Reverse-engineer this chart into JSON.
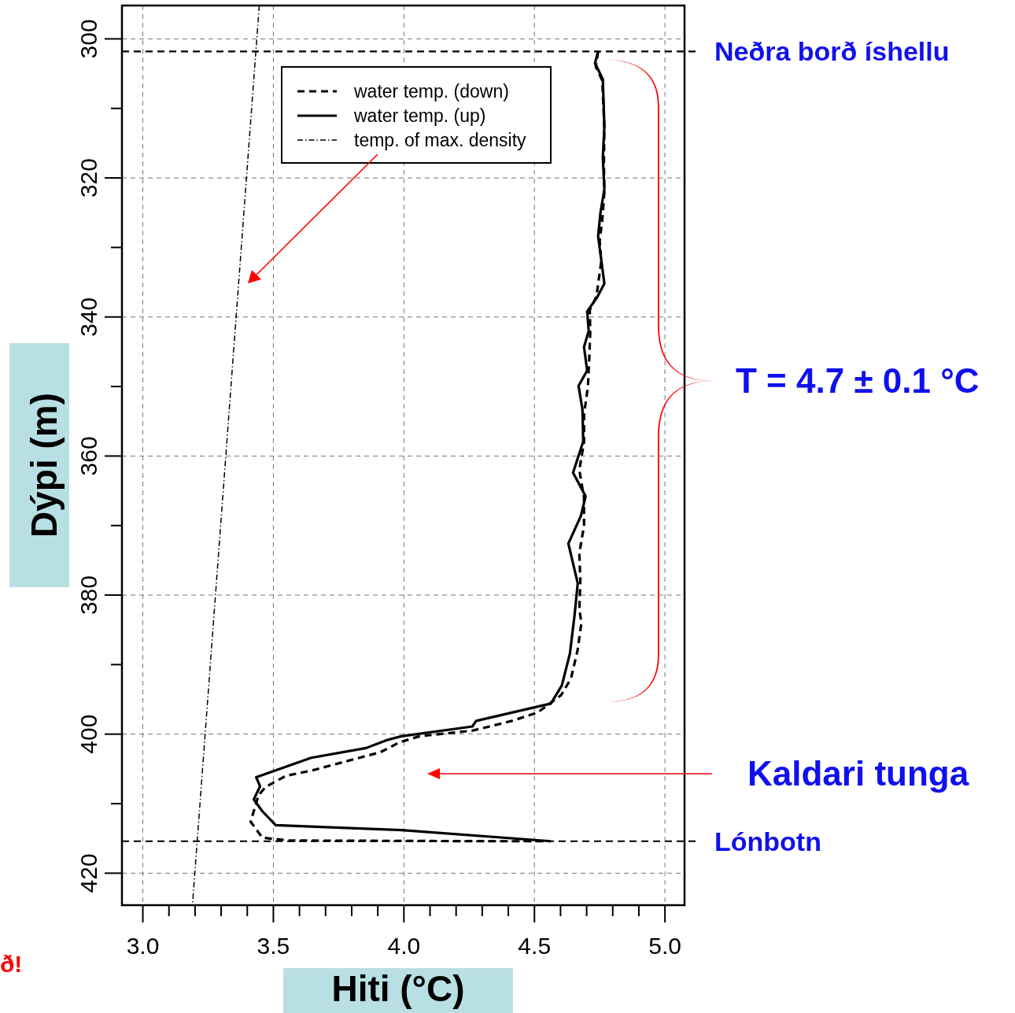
{
  "chart_data": {
    "type": "line",
    "xlabel": "Hiti (°C)",
    "ylabel": "Dýpi (m)",
    "xlim": [
      2.92,
      5.075
    ],
    "ylim": [
      424.6,
      295.2
    ],
    "xticks": [
      {
        "value": 3.0,
        "label": "3.0"
      },
      {
        "value": 3.1,
        "label": null
      },
      {
        "value": 3.2,
        "label": null
      },
      {
        "value": 3.3,
        "label": null
      },
      {
        "value": 3.4,
        "label": null
      },
      {
        "value": 3.5,
        "label": "3.5"
      },
      {
        "value": 3.6,
        "label": null
      },
      {
        "value": 3.7,
        "label": null
      },
      {
        "value": 3.8,
        "label": null
      },
      {
        "value": 3.9,
        "label": null
      },
      {
        "value": 4.0,
        "label": "4.0"
      },
      {
        "value": 4.1,
        "label": null
      },
      {
        "value": 4.2,
        "label": null
      },
      {
        "value": 4.3,
        "label": null
      },
      {
        "value": 4.4,
        "label": null
      },
      {
        "value": 4.5,
        "label": "4.5"
      },
      {
        "value": 4.6,
        "label": null
      },
      {
        "value": 4.7,
        "label": null
      },
      {
        "value": 4.8,
        "label": null
      },
      {
        "value": 4.9,
        "label": null
      },
      {
        "value": 5.0,
        "label": "5.0"
      }
    ],
    "yticks": [
      300,
      {
        "value": 310,
        "label": null
      },
      320,
      {
        "value": 330,
        "label": null
      },
      340,
      {
        "value": 350,
        "label": null
      },
      360,
      {
        "value": 370,
        "label": null
      },
      380,
      {
        "value": 390,
        "label": null
      },
      400,
      {
        "value": 410,
        "label": null
      },
      420
    ],
    "grid": true,
    "legend": "top",
    "series": [
      {
        "name": "water temp. (down)",
        "color": "#000000",
        "line_style": "dashed",
        "x": [
          4.744,
          4.735,
          4.76,
          4.768,
          4.766,
          4.768,
          4.76,
          4.75,
          4.756,
          4.745,
          4.738,
          4.712,
          4.714,
          4.71,
          4.705,
          4.69,
          4.69,
          4.672,
          4.69,
          4.69,
          4.672,
          4.676,
          4.672,
          4.68,
          4.665,
          4.64,
          4.602,
          4.512,
          4.413,
          4.328,
          4.262,
          4.06,
          3.982,
          3.91,
          3.819,
          3.651,
          3.548,
          3.47,
          3.443,
          3.413,
          3.458,
          3.56,
          4.361,
          4.563
        ],
        "values": [
          301.8,
          304,
          306,
          313,
          318,
          322,
          326,
          329,
          332,
          335,
          337,
          339,
          342,
          346,
          350,
          354,
          358,
          362,
          366,
          370,
          374,
          378,
          382,
          384,
          388,
          392,
          394.4,
          396.9,
          398.1,
          398.9,
          399.5,
          400.3,
          401.2,
          402.6,
          403.5,
          405.2,
          406,
          407.6,
          408.8,
          412.6,
          414.9,
          415.3,
          415.4,
          415.4
        ]
      },
      {
        "name": "water temp. (up)",
        "color": "#000000",
        "line_style": "solid",
        "x": [
          4.744,
          4.732,
          4.762,
          4.768,
          4.762,
          4.768,
          4.753,
          4.744,
          4.756,
          4.768,
          4.738,
          4.702,
          4.708,
          4.69,
          4.702,
          4.669,
          4.684,
          4.687,
          4.648,
          4.696,
          4.678,
          4.63,
          4.666,
          4.654,
          4.636,
          4.605,
          4.563,
          4.413,
          4.277,
          4.262,
          3.991,
          3.931,
          3.855,
          3.645,
          3.434,
          3.449,
          3.425,
          3.458,
          3.509,
          3.991,
          4.563
        ],
        "values": [
          301.8,
          303.5,
          305.8,
          312.6,
          317.1,
          321.6,
          325,
          328.4,
          331.8,
          335.2,
          337.3,
          339.2,
          342,
          344.3,
          347.7,
          349.9,
          353.3,
          357.9,
          362.4,
          365.8,
          368.6,
          372.6,
          378.3,
          382.8,
          388.4,
          393,
          395.6,
          396.9,
          398.1,
          398.9,
          400.3,
          400.9,
          402,
          403.4,
          406.2,
          407.5,
          409.4,
          411.1,
          413.1,
          413.8,
          415.4
        ]
      },
      {
        "name": "temp. of max. density",
        "color": "#000000",
        "line_style": "dashdot",
        "x": [
          3.446,
          3.19
        ],
        "values": [
          295.2,
          424.6
        ]
      }
    ],
    "ref_lines": [
      {
        "axis": "y",
        "value": 301.8,
        "label": "Neðra borð íshellu",
        "color": "#000000",
        "line_style": "dashed"
      },
      {
        "axis": "y",
        "value": 415.4,
        "label": "Lónbotn",
        "color": "#000000",
        "line_style": "dashed"
      }
    ],
    "annotations": [
      "T = 4.7 ± 0.1 °C",
      "Kaldari tunga",
      "ð!"
    ]
  }
}
